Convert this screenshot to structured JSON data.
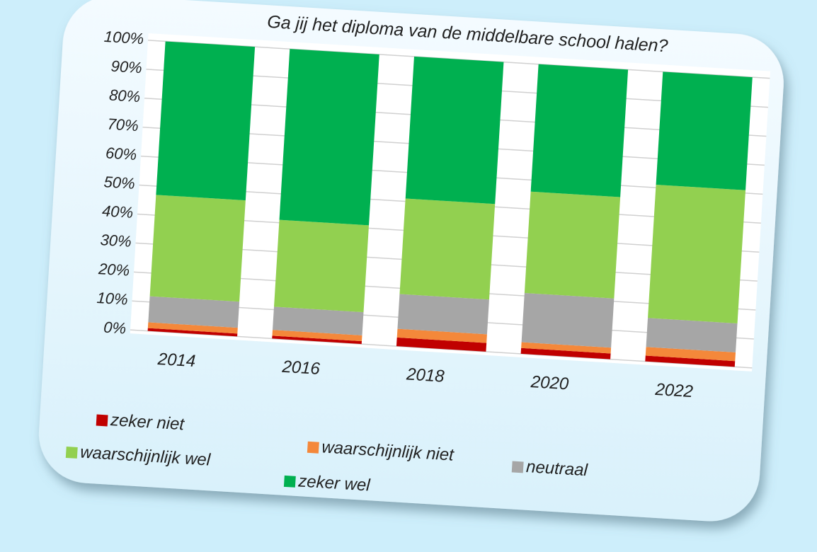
{
  "chart_data": {
    "type": "stacked_bar",
    "title": "Ga jij het diploma van de middelbare school halen?",
    "categories": [
      "2014",
      "2016",
      "2018",
      "2020",
      "2022"
    ],
    "series": [
      {
        "name": "zeker niet",
        "color": "#c00000",
        "values": [
          1,
          1,
          3,
          2,
          2
        ]
      },
      {
        "name": "waarschijnlijk niet",
        "color": "#f4883a",
        "values": [
          2,
          2,
          3,
          2,
          3
        ]
      },
      {
        "name": "neutraal",
        "color": "#a6a6a6",
        "values": [
          9,
          8,
          12,
          17,
          10
        ]
      },
      {
        "name": "waarschijnlijk wel",
        "color": "#92d050",
        "values": [
          35,
          30,
          33,
          35,
          46
        ]
      },
      {
        "name": "zeker wel",
        "color": "#00b050",
        "values": [
          53,
          59,
          49,
          44,
          39
        ]
      }
    ],
    "ylim": [
      0,
      100
    ],
    "yticks": [
      {
        "value": 0,
        "label": "0%"
      },
      {
        "value": 10,
        "label": "10%"
      },
      {
        "value": 20,
        "label": "20%"
      },
      {
        "value": 30,
        "label": "30%"
      },
      {
        "value": 40,
        "label": "40%"
      },
      {
        "value": 50,
        "label": "50%"
      },
      {
        "value": 60,
        "label": "60%"
      },
      {
        "value": 70,
        "label": "70%"
      },
      {
        "value": 80,
        "label": "80%"
      },
      {
        "value": 90,
        "label": "90%"
      },
      {
        "value": 100,
        "label": "100%"
      }
    ],
    "grid": true
  }
}
